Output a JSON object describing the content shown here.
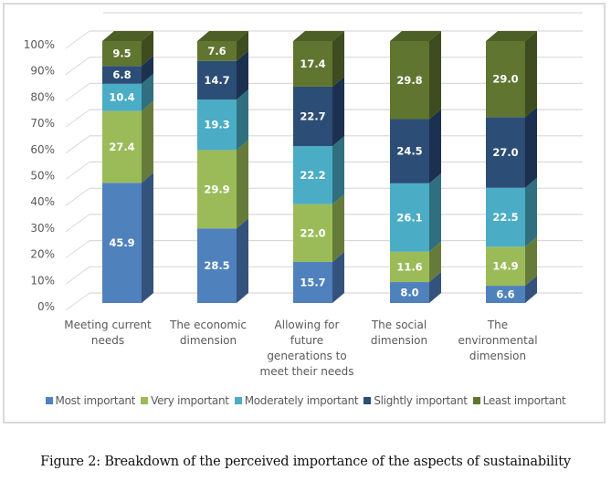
{
  "chart_data": {
    "type": "bar",
    "stacked": true,
    "three_d": true,
    "title": "",
    "xlabel": "",
    "ylabel": "",
    "ylim": [
      0,
      100
    ],
    "yticks": [
      "0%",
      "10%",
      "20%",
      "30%",
      "40%",
      "50%",
      "60%",
      "70%",
      "80%",
      "90%",
      "100%"
    ],
    "grid": true,
    "legend_position": "bottom",
    "categories": [
      [
        "Meeting current",
        "needs"
      ],
      [
        "The economic",
        "dimension"
      ],
      [
        "Allowing for",
        "future",
        "generations to",
        "meet their needs"
      ],
      [
        "The social",
        "dimension"
      ],
      [
        "The",
        "environmental",
        "dimension"
      ]
    ],
    "series": [
      {
        "name": "Most important",
        "color": "#4f81bd",
        "side": "#34537c",
        "top": "#3f6797",
        "values": [
          45.9,
          28.5,
          15.7,
          8.0,
          6.6
        ]
      },
      {
        "name": "Very important",
        "color": "#9bbb59",
        "side": "#667b3a",
        "top": "#7c9647",
        "values": [
          27.4,
          29.9,
          22.0,
          11.6,
          14.9
        ]
      },
      {
        "name": "Moderately important",
        "color": "#4bacc6",
        "side": "#2f6f80",
        "top": "#3c8a9e",
        "values": [
          10.4,
          19.3,
          22.2,
          26.1,
          22.5
        ]
      },
      {
        "name": "Slightly important",
        "color": "#2c4d75",
        "side": "#1c3050",
        "top": "#233e5e",
        "values": [
          6.8,
          14.7,
          22.7,
          24.5,
          27.0
        ]
      },
      {
        "name": "Least important",
        "color": "#607530",
        "side": "#3e4c1f",
        "top": "#4d5e26",
        "values": [
          9.5,
          7.6,
          17.4,
          29.8,
          29.0
        ]
      }
    ]
  },
  "caption": "Figure 2: Breakdown of the perceived importance of the aspects of sustainability"
}
